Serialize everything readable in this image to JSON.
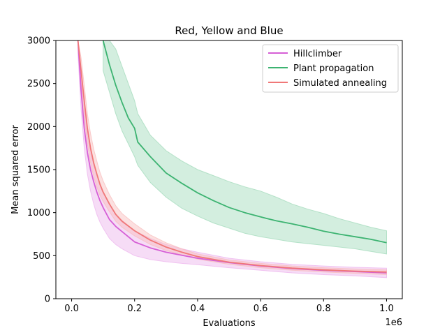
{
  "chart_data": {
    "type": "line",
    "title": "Red, Yellow and Blue",
    "xlabel": "Evaluations",
    "ylabel": "Mean squared error",
    "x_offset_label": "1e6",
    "xlim": [
      -0.05,
      1.05
    ],
    "ylim": [
      0,
      3000
    ],
    "x_ticks": [
      0.0,
      0.2,
      0.4,
      0.6,
      0.8,
      1.0
    ],
    "x_tick_labels": [
      "0.0",
      "0.2",
      "0.4",
      "0.6",
      "0.8",
      "1.0"
    ],
    "y_ticks": [
      0,
      500,
      1000,
      1500,
      2000,
      2500,
      3000
    ],
    "y_tick_labels": [
      "0",
      "500",
      "1000",
      "1500",
      "2000",
      "2500",
      "3000"
    ],
    "legend_position": "top-right",
    "grid": false,
    "series": [
      {
        "name": "Hillclimber",
        "color": "#d65fd6",
        "band_color": "#ecb1ec",
        "x": [
          0.02,
          0.03,
          0.04,
          0.05,
          0.06,
          0.07,
          0.08,
          0.09,
          0.1,
          0.12,
          0.14,
          0.16,
          0.2,
          0.25,
          0.3,
          0.35,
          0.4,
          0.5,
          0.6,
          0.7,
          0.8,
          0.9,
          1.0
        ],
        "mean": [
          3000,
          2420,
          1980,
          1700,
          1500,
          1360,
          1240,
          1140,
          1060,
          920,
          840,
          780,
          660,
          590,
          540,
          505,
          470,
          420,
          380,
          350,
          330,
          315,
          300
        ],
        "lower": [
          2850,
          2200,
          1750,
          1450,
          1250,
          1100,
          980,
          890,
          820,
          700,
          630,
          580,
          500,
          455,
          430,
          410,
          395,
          360,
          330,
          300,
          280,
          265,
          245
        ],
        "upper": [
          3000,
          2600,
          2200,
          1900,
          1700,
          1550,
          1450,
          1330,
          1240,
          1090,
          980,
          910,
          790,
          700,
          630,
          580,
          540,
          470,
          430,
          400,
          380,
          365,
          355
        ]
      },
      {
        "name": "Plant propagation",
        "color": "#3cb371",
        "band_color": "#9ed9b8",
        "x": [
          0.1,
          0.12,
          0.14,
          0.16,
          0.18,
          0.2,
          0.21,
          0.25,
          0.3,
          0.35,
          0.4,
          0.45,
          0.5,
          0.55,
          0.6,
          0.65,
          0.7,
          0.75,
          0.8,
          0.85,
          0.9,
          0.95,
          1.0
        ],
        "mean": [
          3000,
          2720,
          2480,
          2280,
          2100,
          1980,
          1820,
          1650,
          1460,
          1340,
          1230,
          1140,
          1060,
          1000,
          950,
          905,
          870,
          830,
          785,
          750,
          720,
          690,
          650
        ],
        "lower": [
          2650,
          2400,
          2150,
          1950,
          1800,
          1650,
          1550,
          1350,
          1180,
          1050,
          960,
          880,
          820,
          760,
          720,
          690,
          660,
          640,
          620,
          600,
          580,
          550,
          520
        ],
        "upper": [
          3000,
          3000,
          2900,
          2700,
          2500,
          2300,
          2150,
          1900,
          1720,
          1600,
          1500,
          1430,
          1360,
          1300,
          1250,
          1180,
          1100,
          1040,
          990,
          930,
          880,
          830,
          790
        ]
      },
      {
        "name": "Simulated annealing",
        "color": "#f07878",
        "band_color": "#f8baba",
        "x": [
          0.02,
          0.03,
          0.04,
          0.05,
          0.06,
          0.07,
          0.08,
          0.09,
          0.1,
          0.12,
          0.14,
          0.16,
          0.2,
          0.25,
          0.3,
          0.35,
          0.4,
          0.5,
          0.6,
          0.7,
          0.8,
          0.9,
          1.0
        ],
        "mean": [
          3000,
          2650,
          2300,
          1980,
          1750,
          1580,
          1450,
          1330,
          1240,
          1100,
          980,
          900,
          790,
          680,
          600,
          540,
          490,
          425,
          385,
          355,
          335,
          320,
          310
        ],
        "lower": [
          3000,
          2500,
          2100,
          1800,
          1580,
          1420,
          1300,
          1200,
          1130,
          1010,
          900,
          830,
          730,
          630,
          560,
          510,
          460,
          400,
          360,
          330,
          310,
          295,
          280
        ],
        "upper": [
          3000,
          2800,
          2480,
          2150,
          1920,
          1740,
          1600,
          1470,
          1370,
          1210,
          1080,
          990,
          870,
          740,
          650,
          580,
          520,
          450,
          410,
          380,
          360,
          345,
          335
        ]
      }
    ]
  }
}
